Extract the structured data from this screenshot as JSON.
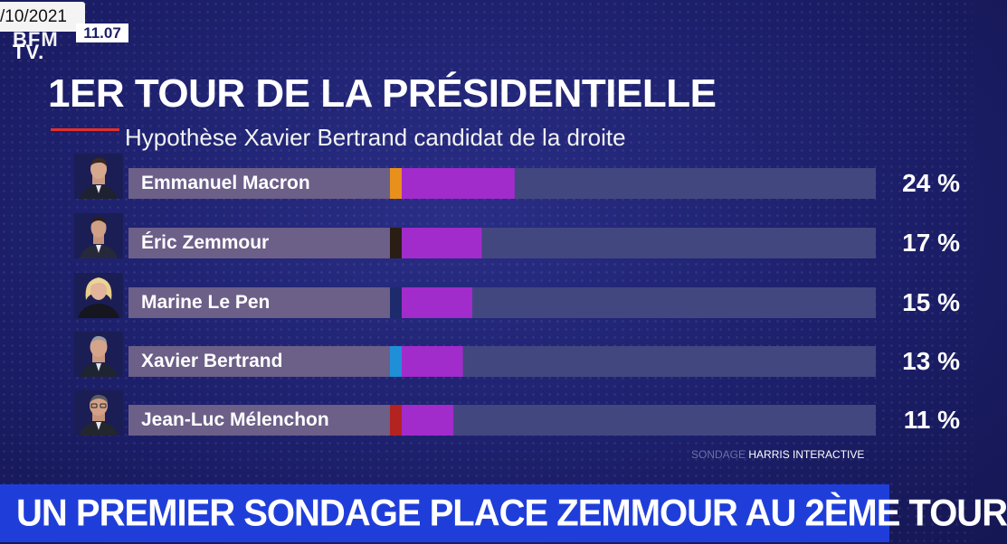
{
  "header": {
    "date": "/10/2021",
    "logo_top": "BFM",
    "logo_bottom": "TV.",
    "clock": "11.07"
  },
  "chart_data": {
    "type": "bar",
    "title": "1ER TOUR DE LA PRÉSIDENTIELLE",
    "subtitle": "Hypothèse Xavier Bertrand candidat de la droite",
    "unit": "%",
    "xlim": [
      0,
      100
    ],
    "categories": [
      "Emmanuel Macron",
      "Éric Zemmour",
      "Marine Le Pen",
      "Xavier Bertrand",
      "Jean-Luc Mélenchon"
    ],
    "values": [
      24,
      17,
      15,
      13,
      11
    ],
    "value_labels": [
      "24 %",
      "17 %",
      "15 %",
      "13 %",
      "11 %"
    ],
    "party_colors": [
      "#e8901c",
      "#2a1e14",
      "#1d2a6b",
      "#1f8fd8",
      "#b3231f"
    ],
    "bar_color": "#a22bcc",
    "track_color": "#43477f",
    "label_area_color": "#6c5f88"
  },
  "source": {
    "label": "SONDAGE",
    "name": "HARRIS INTERACTIVE"
  },
  "ticker": {
    "headline": "UN PREMIER SONDAGE PLACE ZEMMOUR AU 2ÈME TOUR"
  }
}
